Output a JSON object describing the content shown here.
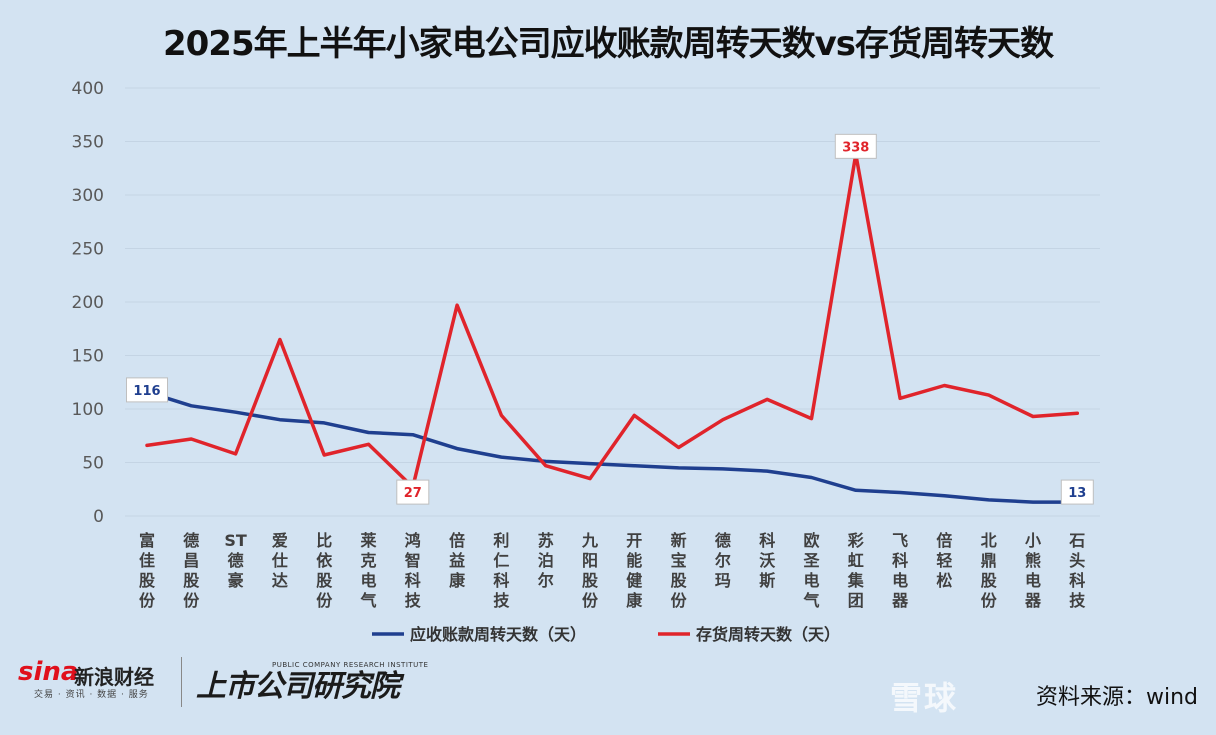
{
  "title": "2025年上半年小家电公司应收账款周转天数vs存货周转天数",
  "colors": {
    "receivable": "#1f3f8f",
    "inventory": "#e0242b",
    "background": "#d3e3f2"
  },
  "footer": {
    "sina_logo": "sina",
    "sina_name": "新浪财经",
    "sina_sub": "交易 · 资讯 · 数据 · 服务",
    "research_logo": "上市公司研究院",
    "research_en": "PUBLIC COMPANY RESEARCH INSTITUTE",
    "source": "资料来源：wind",
    "watermark": "雪球"
  },
  "chart_data": {
    "type": "line",
    "title": "2025年上半年小家电公司应收账款周转天数vs存货周转天数",
    "categories": [
      "富佳股份",
      "德昌股份",
      "ST德豪",
      "爱仕达",
      "比依股份",
      "莱克电气",
      "鸿智科技",
      "倍益康",
      "利仁科技",
      "苏泊尔",
      "九阳股份",
      "开能健康",
      "新宝股份",
      "德尔玛",
      "科沃斯",
      "欧圣电气",
      "彩虹集团",
      "飞科电器",
      "倍轻松",
      "北鼎股份",
      "小熊电器",
      "石头科技"
    ],
    "series": [
      {
        "name": "应收账款周转天数（天）",
        "color": "#1f3f8f",
        "values": [
          116,
          103,
          97,
          90,
          87,
          78,
          76,
          63,
          55,
          51,
          49,
          47,
          45,
          44,
          42,
          36,
          24,
          22,
          19,
          15,
          13,
          13
        ]
      },
      {
        "name": "存货周转天数（天）",
        "color": "#e0242b",
        "values": [
          66,
          72,
          58,
          165,
          57,
          67,
          27,
          197,
          94,
          47,
          35,
          94,
          64,
          90,
          109,
          91,
          338,
          110,
          122,
          113,
          93,
          96
        ]
      }
    ],
    "data_labels": [
      {
        "series": 0,
        "index": 0,
        "text": "116"
      },
      {
        "series": 0,
        "index": 21,
        "text": "13"
      },
      {
        "series": 1,
        "index": 6,
        "text": "27"
      },
      {
        "series": 1,
        "index": 16,
        "text": "338"
      }
    ],
    "ylim": [
      0,
      400
    ],
    "yticks": [
      0,
      50,
      100,
      150,
      200,
      250,
      300,
      350,
      400
    ],
    "grid": true,
    "legend": "bottom"
  }
}
